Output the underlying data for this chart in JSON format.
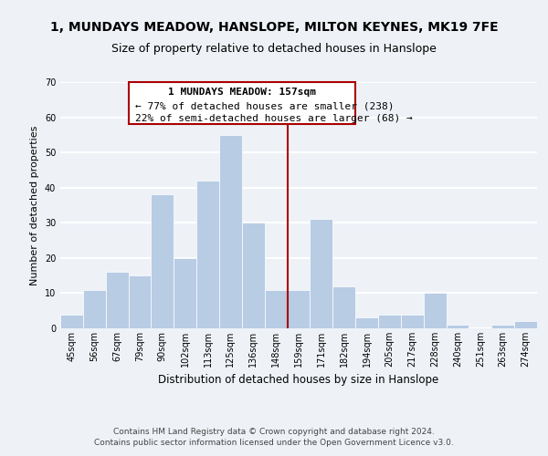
{
  "title": "1, MUNDAYS MEADOW, HANSLOPE, MILTON KEYNES, MK19 7FE",
  "subtitle": "Size of property relative to detached houses in Hanslope",
  "xlabel": "Distribution of detached houses by size in Hanslope",
  "ylabel": "Number of detached properties",
  "categories": [
    "45sqm",
    "56sqm",
    "67sqm",
    "79sqm",
    "90sqm",
    "102sqm",
    "113sqm",
    "125sqm",
    "136sqm",
    "148sqm",
    "159sqm",
    "171sqm",
    "182sqm",
    "194sqm",
    "205sqm",
    "217sqm",
    "228sqm",
    "240sqm",
    "251sqm",
    "263sqm",
    "274sqm"
  ],
  "values": [
    4,
    11,
    16,
    15,
    38,
    20,
    42,
    55,
    30,
    11,
    11,
    31,
    12,
    3,
    4,
    4,
    10,
    1,
    0,
    1,
    2
  ],
  "bar_color": "#b8cce4",
  "bar_edge_color": "#ffffff",
  "background_color": "#eef2f7",
  "grid_color": "#ffffff",
  "annotation_line1": "1 MUNDAYS MEADOW: 157sqm",
  "annotation_line2": "← 77% of detached houses are smaller (238)",
  "annotation_line3": "22% of semi-detached houses are larger (68) →",
  "marker_color": "#aa0000",
  "ylim": [
    0,
    70
  ],
  "yticks": [
    0,
    10,
    20,
    30,
    40,
    50,
    60,
    70
  ],
  "footer_text": "Contains HM Land Registry data © Crown copyright and database right 2024.\nContains public sector information licensed under the Open Government Licence v3.0.",
  "title_fontsize": 10,
  "subtitle_fontsize": 9,
  "xlabel_fontsize": 8.5,
  "ylabel_fontsize": 8,
  "tick_fontsize": 7,
  "annotation_fontsize": 8,
  "footer_fontsize": 6.5
}
